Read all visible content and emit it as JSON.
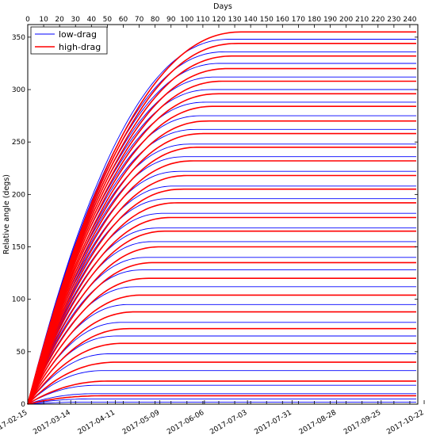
{
  "chart_data": {
    "type": "line",
    "title": "",
    "xlabel_top": "Days",
    "ylabel": "Relative angle (degs)",
    "xlim_days": [
      0,
      245
    ],
    "ylim": [
      0,
      362
    ],
    "top_ticks": [
      0,
      10,
      20,
      30,
      40,
      50,
      60,
      70,
      80,
      90,
      100,
      110,
      120,
      130,
      140,
      150,
      160,
      170,
      180,
      190,
      200,
      210,
      220,
      230,
      240
    ],
    "y_ticks": [
      0,
      50,
      100,
      150,
      200,
      250,
      300,
      350
    ],
    "bottom_ticks": [
      {
        "day": 0,
        "label": "2017-02-15"
      },
      {
        "day": 27,
        "label": "2017-03-14"
      },
      {
        "day": 55,
        "label": "2017-04-11"
      },
      {
        "day": 83,
        "label": "2017-05-09"
      },
      {
        "day": 111,
        "label": "2017-06-06"
      },
      {
        "day": 138,
        "label": "2017-07-03"
      },
      {
        "day": 166,
        "label": "2017-07-31"
      },
      {
        "day": 194,
        "label": "2017-08-28"
      },
      {
        "day": 222,
        "label": "2017-09-25"
      },
      {
        "day": 249,
        "label": "2017-10-22"
      }
    ],
    "series": [
      {
        "name": "low-drag",
        "color": "#0000ff",
        "style": "solid",
        "curves": [
          {
            "start": 0,
            "start_val": 0,
            "end": 245,
            "end_val": 2
          },
          {
            "start": 0,
            "start_val": 0,
            "end": 245,
            "end_val": 5
          },
          {
            "start": 0,
            "start_val": 0,
            "end": 245,
            "end_val": 10
          },
          {
            "start": 0,
            "start_val": 0,
            "end": 245,
            "end_val": 18
          },
          {
            "start": 0,
            "start_val": 0,
            "end": 245,
            "end_val": 32
          },
          {
            "start": 0,
            "start_val": 0,
            "end": 245,
            "end_val": 48
          },
          {
            "start": 0,
            "start_val": 0,
            "end": 245,
            "end_val": 65
          },
          {
            "start": 0,
            "start_val": 0,
            "end": 245,
            "end_val": 78
          },
          {
            "start": 0,
            "start_val": 0,
            "end": 245,
            "end_val": 95
          },
          {
            "start": 0,
            "start_val": 0,
            "end": 245,
            "end_val": 112
          },
          {
            "start": 0,
            "start_val": 0,
            "end": 245,
            "end_val": 128
          },
          {
            "start": 0,
            "start_val": 0,
            "end": 245,
            "end_val": 140
          },
          {
            "start": 0,
            "start_val": 0,
            "end": 245,
            "end_val": 155
          },
          {
            "start": 0,
            "start_val": 0,
            "end": 245,
            "end_val": 168
          },
          {
            "start": 0,
            "start_val": 0,
            "end": 245,
            "end_val": 182
          },
          {
            "start": 0,
            "start_val": 0,
            "end": 245,
            "end_val": 196
          },
          {
            "start": 0,
            "start_val": 0,
            "end": 245,
            "end_val": 208
          },
          {
            "start": 0,
            "start_val": 0,
            "end": 245,
            "end_val": 222
          },
          {
            "start": 0,
            "start_val": 0,
            "end": 245,
            "end_val": 236
          },
          {
            "start": 0,
            "start_val": 0,
            "end": 245,
            "end_val": 248
          },
          {
            "start": 0,
            "start_val": 0,
            "end": 245,
            "end_val": 262
          },
          {
            "start": 0,
            "start_val": 0,
            "end": 245,
            "end_val": 275
          },
          {
            "start": 0,
            "start_val": 0,
            "end": 245,
            "end_val": 288
          },
          {
            "start": 0,
            "start_val": 0,
            "end": 245,
            "end_val": 300
          },
          {
            "start": 0,
            "start_val": 0,
            "end": 245,
            "end_val": 312
          },
          {
            "start": 0,
            "start_val": 0,
            "end": 245,
            "end_val": 325
          },
          {
            "start": 0,
            "start_val": 0,
            "end": 245,
            "end_val": 336
          },
          {
            "start": 0,
            "start_val": 0,
            "end": 245,
            "end_val": 348
          }
        ]
      },
      {
        "name": "high-drag",
        "color": "#ff0000",
        "style": "solid",
        "curves": [
          {
            "start": 0,
            "start_val": 0,
            "end": 245,
            "end_val": 8
          },
          {
            "start": 0,
            "start_val": 0,
            "end": 245,
            "end_val": 22
          },
          {
            "start": 0,
            "start_val": 0,
            "end": 245,
            "end_val": 40
          },
          {
            "start": 0,
            "start_val": 0,
            "end": 245,
            "end_val": 58
          },
          {
            "start": 0,
            "start_val": 0,
            "end": 245,
            "end_val": 72
          },
          {
            "start": 0,
            "start_val": 0,
            "end": 245,
            "end_val": 88
          },
          {
            "start": 0,
            "start_val": 0,
            "end": 245,
            "end_val": 104
          },
          {
            "start": 0,
            "start_val": 0,
            "end": 245,
            "end_val": 120
          },
          {
            "start": 0,
            "start_val": 0,
            "end": 245,
            "end_val": 135
          },
          {
            "start": 0,
            "start_val": 0,
            "end": 245,
            "end_val": 150
          },
          {
            "start": 0,
            "start_val": 0,
            "end": 245,
            "end_val": 165
          },
          {
            "start": 0,
            "start_val": 0,
            "end": 245,
            "end_val": 178
          },
          {
            "start": 0,
            "start_val": 0,
            "end": 245,
            "end_val": 192
          },
          {
            "start": 0,
            "start_val": 0,
            "end": 245,
            "end_val": 205
          },
          {
            "start": 0,
            "start_val": 0,
            "end": 245,
            "end_val": 218
          },
          {
            "start": 0,
            "start_val": 0,
            "end": 245,
            "end_val": 232
          },
          {
            "start": 0,
            "start_val": 0,
            "end": 245,
            "end_val": 245
          },
          {
            "start": 0,
            "start_val": 0,
            "end": 245,
            "end_val": 258
          },
          {
            "start": 0,
            "start_val": 0,
            "end": 245,
            "end_val": 270
          },
          {
            "start": 0,
            "start_val": 0,
            "end": 245,
            "end_val": 284
          },
          {
            "start": 0,
            "start_val": 0,
            "end": 245,
            "end_val": 296
          },
          {
            "start": 0,
            "start_val": 0,
            "end": 245,
            "end_val": 308
          },
          {
            "start": 0,
            "start_val": 0,
            "end": 245,
            "end_val": 320
          },
          {
            "start": 0,
            "start_val": 0,
            "end": 245,
            "end_val": 332
          },
          {
            "start": 0,
            "start_val": 0,
            "end": 245,
            "end_val": 344
          },
          {
            "start": 0,
            "start_val": 0,
            "end": 245,
            "end_val": 355
          }
        ]
      }
    ],
    "legend": {
      "position": "top-left",
      "entries": [
        "low-drag",
        "high-drag"
      ]
    },
    "grid": false
  }
}
